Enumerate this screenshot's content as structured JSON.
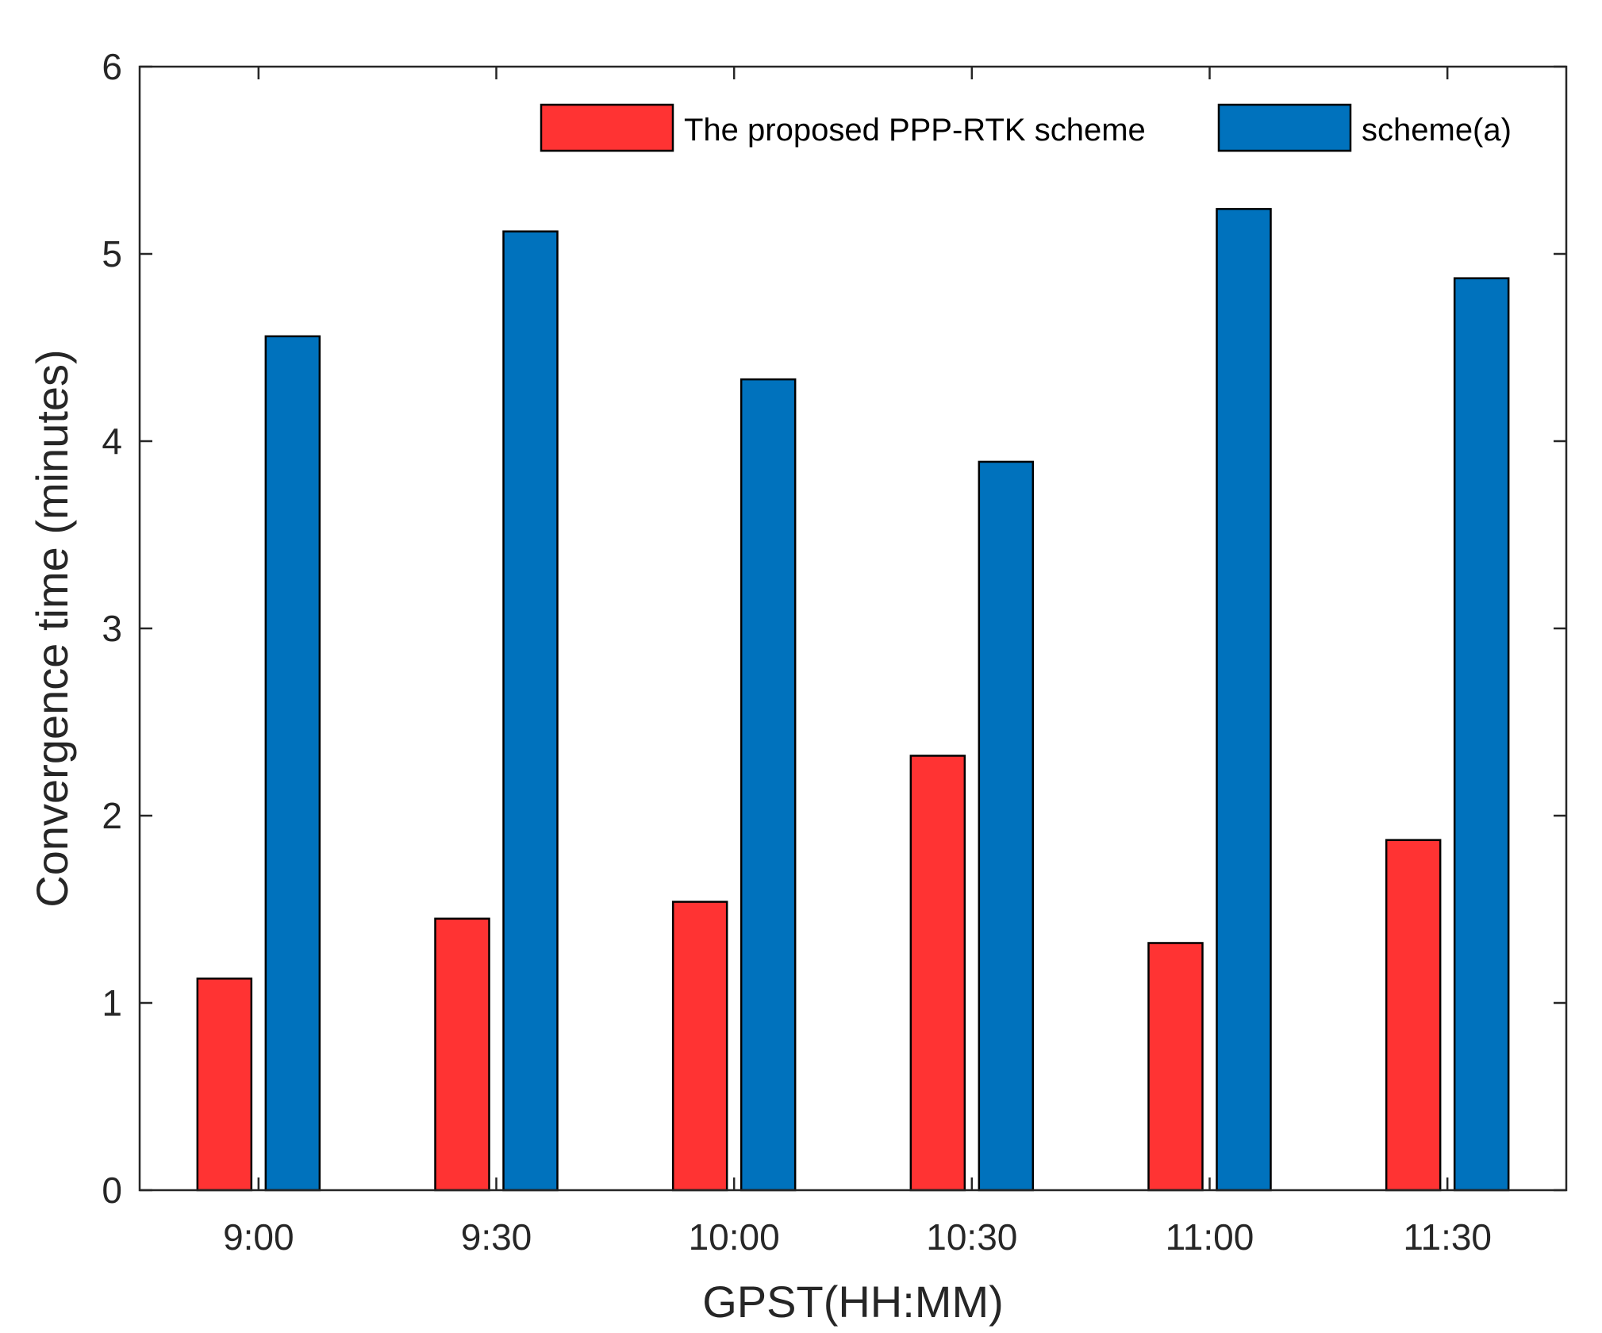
{
  "chart_data": {
    "type": "bar",
    "title": "",
    "xlabel": "GPST(HH:MM)",
    "ylabel": "Convergence time (minutes)",
    "categories": [
      "9:00",
      "9:30",
      "10:00",
      "10:30",
      "11:00",
      "11:30"
    ],
    "ylim": [
      0,
      6
    ],
    "yticks": [
      "0",
      "1",
      "2",
      "3",
      "4",
      "5",
      "6"
    ],
    "grid": false,
    "legend_position": "top-right",
    "series": [
      {
        "name": "The proposed PPP-RTK scheme",
        "color": "#ff3333",
        "values": [
          1.13,
          1.45,
          1.54,
          2.32,
          1.32,
          1.87
        ]
      },
      {
        "name": "scheme(a)",
        "color": "#0072bd",
        "values": [
          4.56,
          5.12,
          4.33,
          3.89,
          5.24,
          4.87
        ]
      }
    ]
  }
}
